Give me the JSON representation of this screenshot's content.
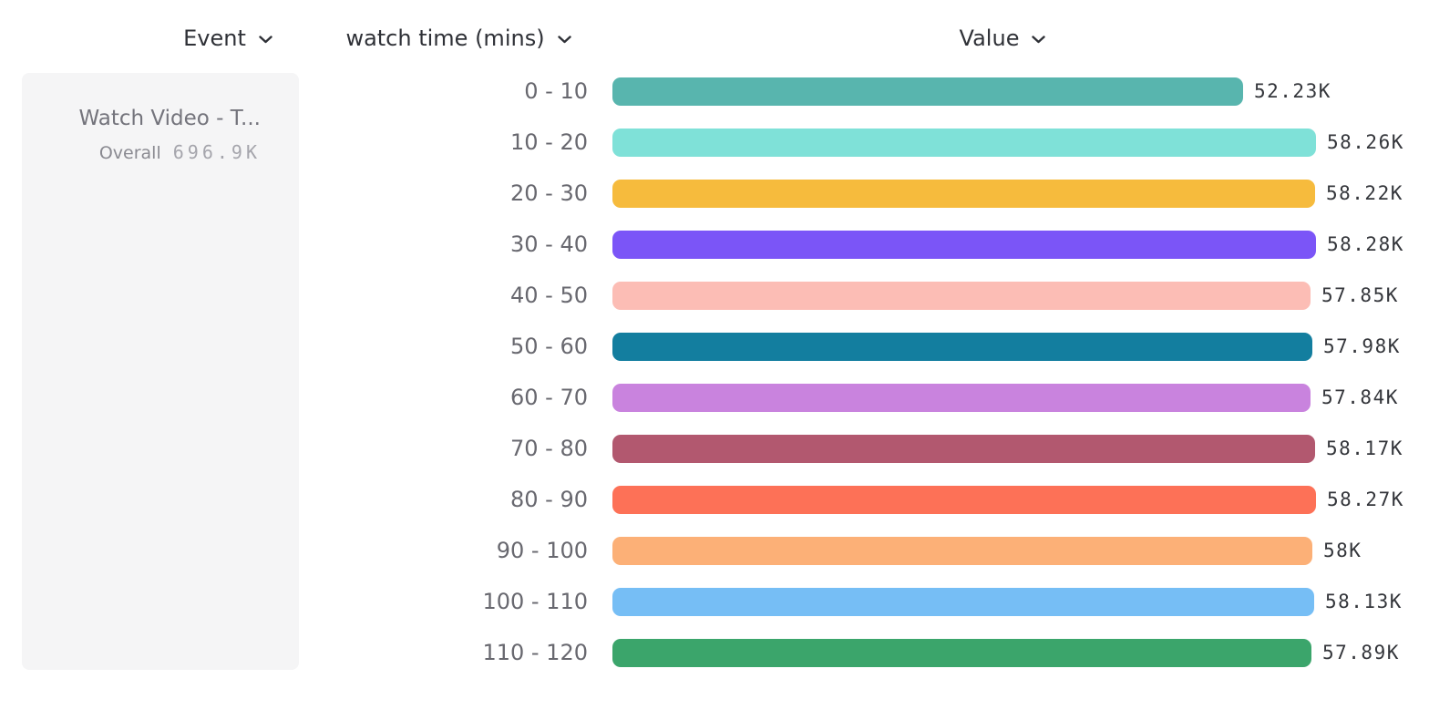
{
  "header": {
    "event": {
      "label": "Event",
      "icon": "chevron-down"
    },
    "breakdown": {
      "label": "watch time (mins)",
      "icon": "chevron-down"
    },
    "value": {
      "label": "Value",
      "icon": "chevron-down"
    }
  },
  "event_panel": {
    "title": "Watch Video - T...",
    "overall_label": "Overall",
    "overall_value": "696.9K"
  },
  "chart_data": {
    "type": "bar",
    "orientation": "horizontal",
    "title": "",
    "xlabel": "Value",
    "ylabel": "watch time (mins)",
    "categories": [
      "0 - 10",
      "10 - 20",
      "20 - 30",
      "30 - 40",
      "40 - 50",
      "50 - 60",
      "60 - 70",
      "70 - 80",
      "80 - 90",
      "90 - 100",
      "100 - 110",
      "110 - 120"
    ],
    "values": [
      52230,
      58260,
      58220,
      58280,
      57850,
      57980,
      57840,
      58170,
      58270,
      58000,
      58130,
      57890
    ],
    "value_labels": [
      "52.23K",
      "58.26K",
      "58.22K",
      "58.28K",
      "57.85K",
      "57.98K",
      "57.84K",
      "58.17K",
      "58.27K",
      "58K",
      "58.13K",
      "57.89K"
    ],
    "bar_colors": [
      "#58B5AE",
      "#7FE1D8",
      "#F6BB3D",
      "#7B55F7",
      "#FCBDB5",
      "#137E9F",
      "#C983DE",
      "#B2586F",
      "#FD7157",
      "#FCB077",
      "#76BEF5",
      "#3BA56B"
    ],
    "xlim": [
      0,
      58280
    ],
    "grid": false,
    "legend_position": "none",
    "value_label_position": "right-of-bar"
  },
  "colors": {
    "background": "#FFFFFF",
    "panel_background": "#F5F5F6",
    "header_text": "#2F3137",
    "category_text": "#68686F",
    "value_text": "#34363B",
    "panel_title_text": "#74747C",
    "overall_label_text": "#8A8A91",
    "overall_value_text": "#A5A5AC"
  }
}
